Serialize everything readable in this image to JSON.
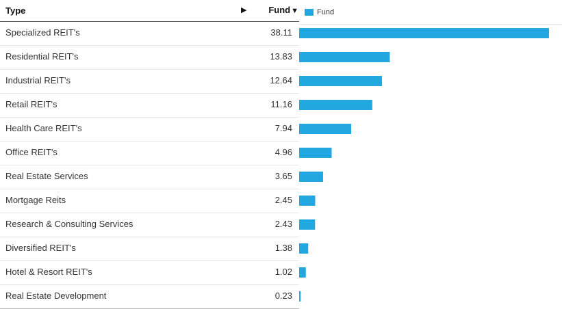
{
  "header": {
    "type_label": "Type",
    "expand_arrow": "▶",
    "fund_label": "Fund",
    "sort_caret": "▼"
  },
  "chart_data": {
    "type": "bar",
    "orientation": "horizontal",
    "categories": [
      "Specialized REIT's",
      "Residential REIT's",
      "Industrial REIT's",
      "Retail REIT's",
      "Health Care REIT's",
      "Office REIT's",
      "Real Estate Services",
      "Mortgage Reits",
      "Research & Consulting Services",
      "Diversified REIT's",
      "Hotel & Resort REIT's",
      "Real Estate Development"
    ],
    "series": [
      {
        "name": "Fund",
        "color": "#22a7e0",
        "values": [
          38.11,
          13.83,
          12.64,
          11.16,
          7.94,
          4.96,
          3.65,
          2.45,
          2.43,
          1.38,
          1.02,
          0.23
        ],
        "labels": [
          "38.11",
          "13.83",
          "12.64",
          "11.16",
          "7.94",
          "4.96",
          "3.65",
          "2.45",
          "2.43",
          "1.38",
          "1.02",
          "0.23"
        ]
      }
    ],
    "xlim": [
      0,
      38.11
    ],
    "grid": false,
    "legend_position": "top-left"
  }
}
